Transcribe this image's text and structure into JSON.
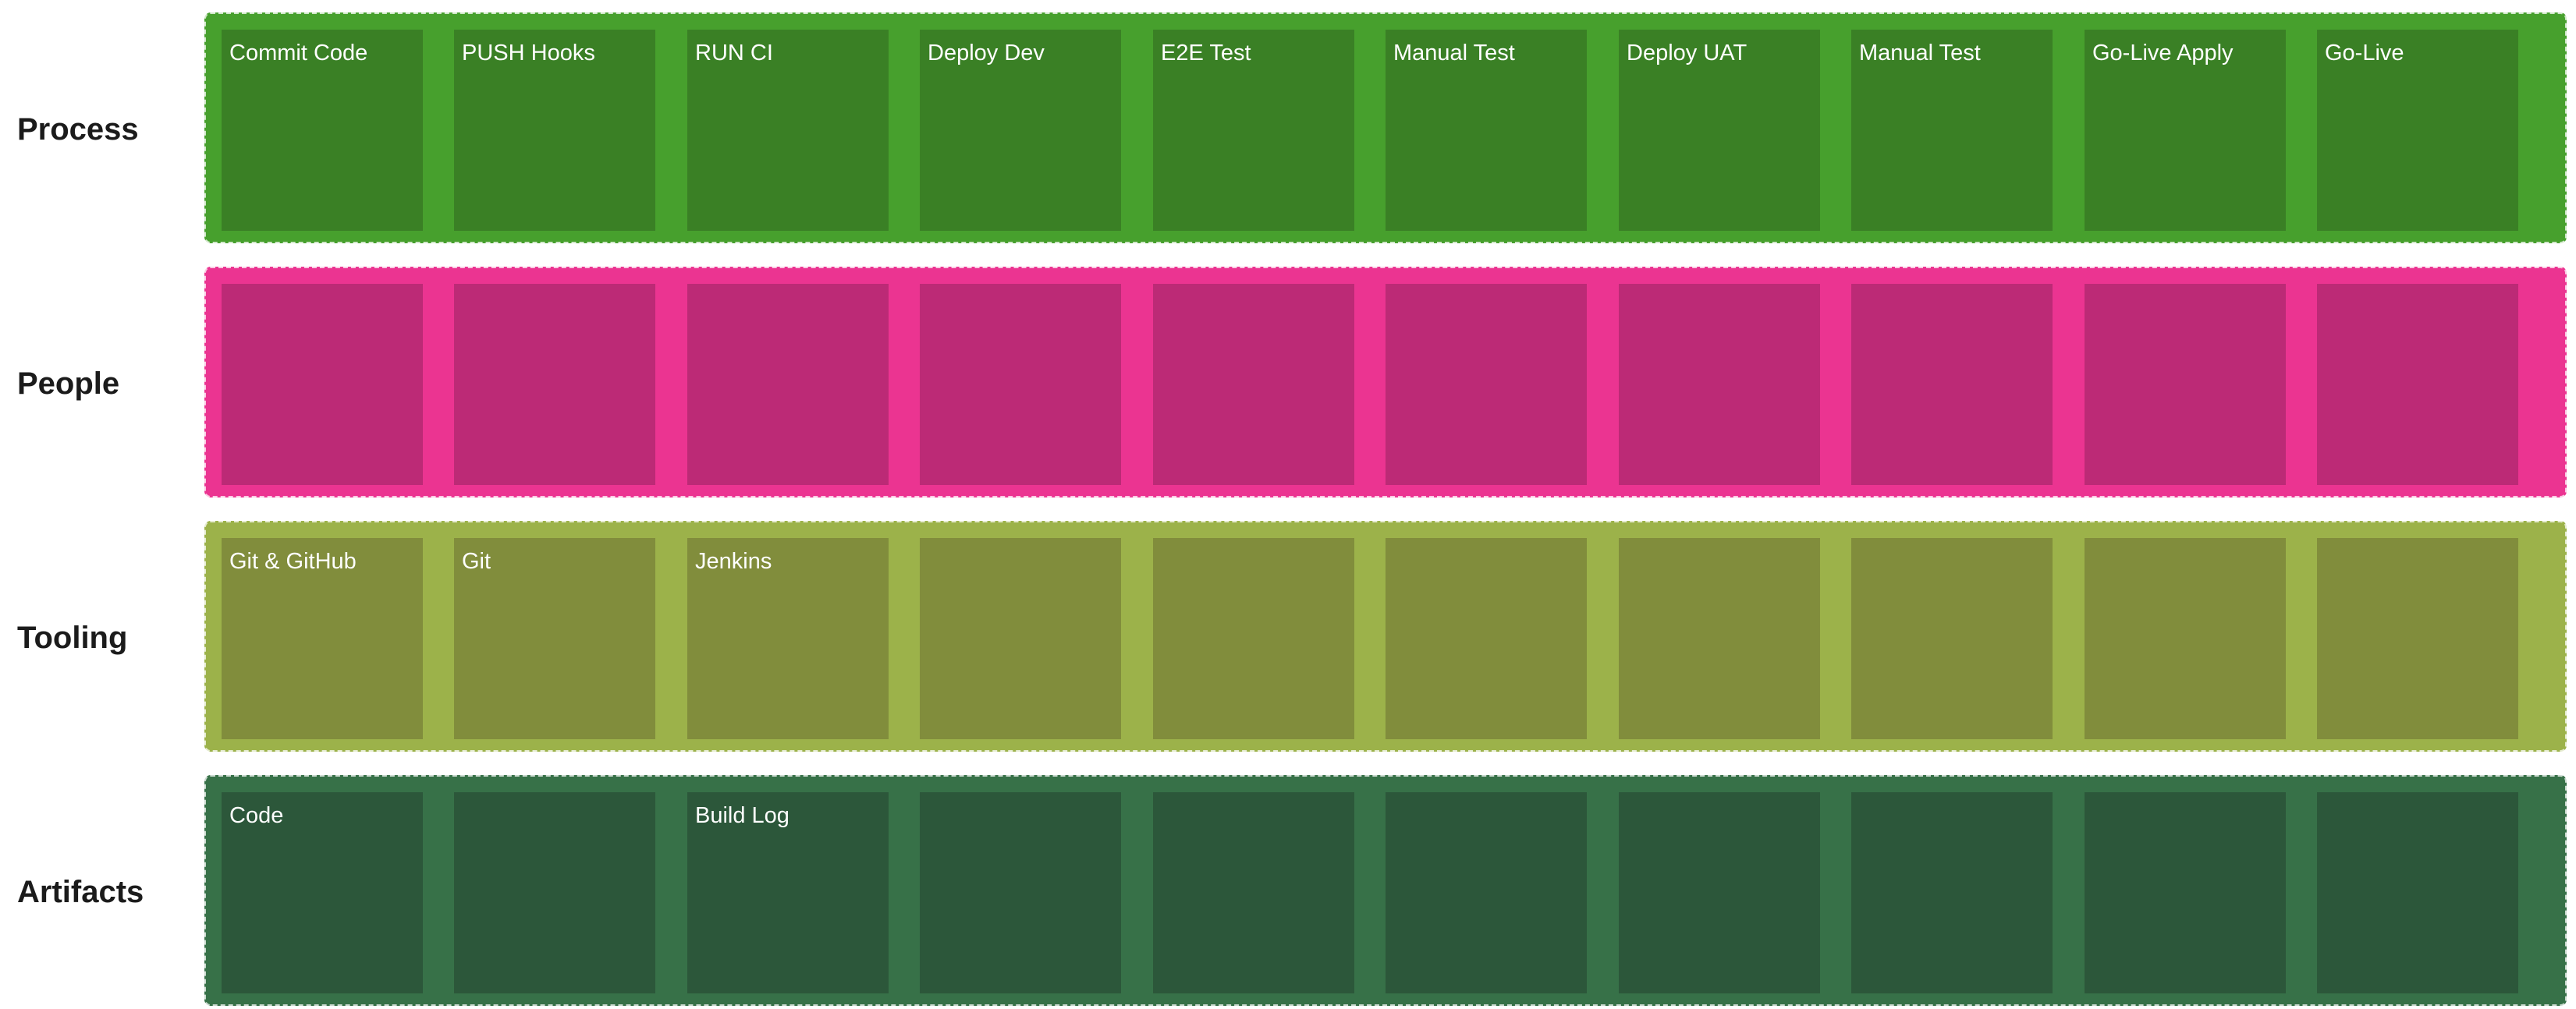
{
  "colors": {
    "process_band": "#47A02D",
    "process_card": "#3A8025",
    "people_band": "#EB3491",
    "people_card": "#BC2A76",
    "tooling_band": "#9CB24A",
    "tooling_card": "#818D3C",
    "artifacts_band": "#377148",
    "artifacts_card": "#2C573A"
  },
  "lanes": [
    {
      "label": "Process",
      "cards": [
        "Commit Code",
        "PUSH Hooks",
        "RUN CI",
        "Deploy Dev",
        "E2E Test",
        "Manual Test",
        "Deploy UAT",
        "Manual Test",
        "Go-Live Apply",
        "Go-Live"
      ]
    },
    {
      "label": "People",
      "cards": [
        "",
        "",
        "",
        "",
        "",
        "",
        "",
        "",
        "",
        ""
      ]
    },
    {
      "label": "Tooling",
      "cards": [
        "Git & GitHub",
        "Git",
        "Jenkins",
        "",
        "",
        "",
        "",
        "",
        "",
        ""
      ]
    },
    {
      "label": "Artifacts",
      "cards": [
        "Code",
        "",
        "Build Log",
        "",
        "",
        "",
        "",
        "",
        "",
        ""
      ]
    }
  ]
}
